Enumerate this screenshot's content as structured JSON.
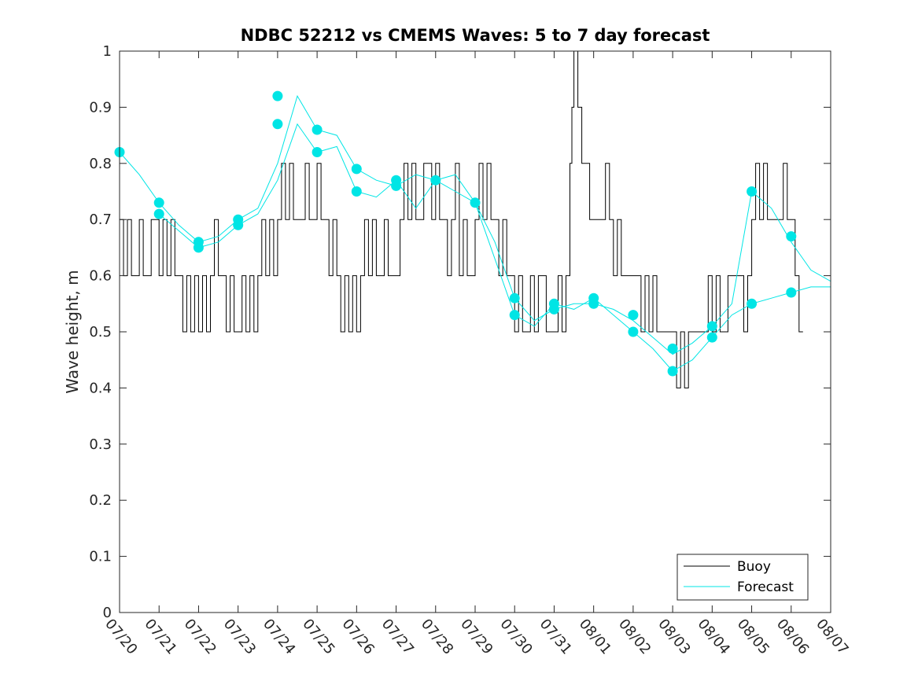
{
  "chart_data": {
    "type": "line",
    "title": "NDBC 52212 vs CMEMS Waves: 5 to 7 day forecast",
    "xlabel": "",
    "ylabel": "Wave height, m",
    "ylim": [
      0,
      1
    ],
    "yticks": [
      "0",
      "0.1",
      "0.2",
      "0.3",
      "0.4",
      "0.5",
      "0.6",
      "0.7",
      "0.8",
      "0.9",
      "1"
    ],
    "xlim_days": [
      0,
      18
    ],
    "xticks": [
      "07/20",
      "07/21",
      "07/22",
      "07/23",
      "07/24",
      "07/25",
      "07/26",
      "07/27",
      "07/28",
      "07/29",
      "07/30",
      "07/31",
      "08/01",
      "08/02",
      "08/03",
      "08/04",
      "08/05",
      "08/06",
      "08/07"
    ],
    "grid": false,
    "legend_position": "bottom-right",
    "colors": {
      "buoy": "#000000",
      "forecast": "#00e5e5"
    },
    "series": [
      {
        "name": "Buoy",
        "x": [
          0,
          0.1,
          0.2,
          0.3,
          0.4,
          0.5,
          0.6,
          0.7,
          0.8,
          0.9,
          1.0,
          1.1,
          1.2,
          1.3,
          1.4,
          1.5,
          1.6,
          1.7,
          1.8,
          1.9,
          2.0,
          2.1,
          2.2,
          2.3,
          2.4,
          2.5,
          2.6,
          2.7,
          2.8,
          2.9,
          3.0,
          3.1,
          3.2,
          3.3,
          3.4,
          3.5,
          3.6,
          3.7,
          3.8,
          3.9,
          4.0,
          4.1,
          4.2,
          4.3,
          4.4,
          4.5,
          4.6,
          4.7,
          4.8,
          4.9,
          5.0,
          5.1,
          5.2,
          5.3,
          5.4,
          5.5,
          5.6,
          5.7,
          5.8,
          5.9,
          6.0,
          6.1,
          6.2,
          6.3,
          6.4,
          6.5,
          6.6,
          6.7,
          6.8,
          6.9,
          7.0,
          7.1,
          7.2,
          7.3,
          7.4,
          7.5,
          7.6,
          7.7,
          7.8,
          7.9,
          8.0,
          8.1,
          8.2,
          8.3,
          8.4,
          8.5,
          8.6,
          8.7,
          8.8,
          8.9,
          9.0,
          9.1,
          9.2,
          9.3,
          9.4,
          9.5,
          9.6,
          9.7,
          9.8,
          9.9,
          10.0,
          10.1,
          10.2,
          10.3,
          10.4,
          10.5,
          10.6,
          10.7,
          10.8,
          10.9,
          11.0,
          11.1,
          11.2,
          11.3,
          11.4,
          11.45,
          11.5,
          11.55,
          11.6,
          11.7,
          11.8,
          11.9,
          12.0,
          12.1,
          12.2,
          12.3,
          12.4,
          12.5,
          12.6,
          12.7,
          12.8,
          12.9,
          13.0,
          13.1,
          13.2,
          13.3,
          13.4,
          13.5,
          13.6,
          13.7,
          13.8,
          13.9,
          14.0,
          14.1,
          14.2,
          14.3,
          14.4,
          14.5,
          14.6,
          14.7,
          14.8,
          14.9,
          15.0,
          15.1,
          15.2,
          15.3,
          15.4,
          15.5,
          15.6,
          15.7,
          15.8,
          15.9,
          16.0,
          16.1,
          16.2,
          16.3,
          16.4,
          16.5,
          16.6,
          16.7,
          16.8,
          16.9,
          17.0,
          17.1,
          17.2,
          17.3
        ],
        "y": [
          0.7,
          0.6,
          0.7,
          0.6,
          0.6,
          0.7,
          0.6,
          0.6,
          0.7,
          0.7,
          0.6,
          0.7,
          0.6,
          0.7,
          0.6,
          0.6,
          0.5,
          0.6,
          0.5,
          0.6,
          0.5,
          0.6,
          0.5,
          0.6,
          0.7,
          0.6,
          0.6,
          0.5,
          0.6,
          0.5,
          0.5,
          0.6,
          0.5,
          0.6,
          0.5,
          0.6,
          0.7,
          0.6,
          0.7,
          0.6,
          0.7,
          0.8,
          0.7,
          0.8,
          0.7,
          0.7,
          0.7,
          0.8,
          0.7,
          0.7,
          0.8,
          0.7,
          0.7,
          0.6,
          0.7,
          0.6,
          0.5,
          0.6,
          0.5,
          0.6,
          0.5,
          0.6,
          0.7,
          0.6,
          0.7,
          0.6,
          0.6,
          0.7,
          0.6,
          0.6,
          0.6,
          0.7,
          0.8,
          0.7,
          0.8,
          0.7,
          0.7,
          0.8,
          0.8,
          0.7,
          0.8,
          0.7,
          0.7,
          0.6,
          0.7,
          0.8,
          0.6,
          0.7,
          0.6,
          0.6,
          0.7,
          0.8,
          0.7,
          0.8,
          0.7,
          0.7,
          0.6,
          0.7,
          0.6,
          0.6,
          0.5,
          0.6,
          0.5,
          0.5,
          0.6,
          0.5,
          0.6,
          0.6,
          0.5,
          0.5,
          0.5,
          0.6,
          0.5,
          0.6,
          0.8,
          0.9,
          1.0,
          1.0,
          0.9,
          0.8,
          0.8,
          0.7,
          0.7,
          0.7,
          0.7,
          0.8,
          0.7,
          0.6,
          0.7,
          0.6,
          0.6,
          0.6,
          0.6,
          0.6,
          0.5,
          0.6,
          0.5,
          0.6,
          0.5,
          0.5,
          0.5,
          0.5,
          0.5,
          0.4,
          0.5,
          0.4,
          0.5,
          0.5,
          0.5,
          0.5,
          0.5,
          0.6,
          0.5,
          0.6,
          0.5,
          0.5,
          0.6,
          0.6,
          0.6,
          0.6,
          0.5,
          0.6,
          0.7,
          0.8,
          0.7,
          0.8,
          0.7,
          0.7,
          0.7,
          0.7,
          0.8,
          0.7,
          0.7,
          0.6,
          0.5,
          0.5
        ]
      },
      {
        "name": "Forecast",
        "x": [
          0,
          0.5,
          1.0,
          1.5,
          2.0,
          2.5,
          3.0,
          3.5,
          4.0,
          4.5,
          5.0,
          5.5,
          6.0,
          6.5,
          7.0,
          7.5,
          8.0,
          8.5,
          9.0,
          9.5,
          10.0,
          10.5,
          11.0,
          11.5,
          12.0,
          12.5,
          13.0,
          13.5,
          14.0,
          14.5,
          15.0,
          15.5,
          16.0,
          16.5,
          17.0,
          17.5,
          18.0
        ],
        "y": [
          0.82,
          0.78,
          0.73,
          0.69,
          0.66,
          0.67,
          0.7,
          0.72,
          0.8,
          0.92,
          0.86,
          0.85,
          0.79,
          0.77,
          0.76,
          0.78,
          0.77,
          0.78,
          0.73,
          0.66,
          0.56,
          0.52,
          0.54,
          0.55,
          0.55,
          0.54,
          0.52,
          0.49,
          0.46,
          0.48,
          0.51,
          0.55,
          0.75,
          0.72,
          0.66,
          0.61,
          0.59
        ]
      },
      {
        "name": "",
        "x": [
          1.0,
          1.5,
          2.0,
          2.5,
          3.0,
          3.5,
          4.0,
          4.5,
          5.0,
          5.5,
          6.0,
          6.5,
          7.0,
          7.5,
          8.0,
          8.5,
          9.0,
          9.5,
          10.0,
          10.5,
          11.0,
          11.5,
          12.0,
          12.5,
          13.0,
          13.5,
          14.0,
          14.5,
          15.0,
          15.5,
          16.0,
          16.5,
          17.0,
          17.5,
          18.0
        ],
        "y": [
          0.71,
          0.68,
          0.65,
          0.66,
          0.69,
          0.71,
          0.77,
          0.87,
          0.82,
          0.83,
          0.75,
          0.74,
          0.77,
          0.72,
          0.77,
          0.75,
          0.73,
          0.63,
          0.53,
          0.51,
          0.55,
          0.54,
          0.56,
          0.53,
          0.5,
          0.47,
          0.43,
          0.45,
          0.49,
          0.53,
          0.55,
          0.56,
          0.57,
          0.58,
          0.58
        ]
      }
    ],
    "markers": {
      "x": [
        0,
        1,
        1,
        2,
        2,
        3,
        3,
        4,
        4,
        5,
        5,
        6,
        6,
        7,
        7,
        8,
        9,
        10,
        10,
        11,
        11,
        12,
        12,
        13,
        13,
        14,
        14,
        15,
        15,
        16,
        16,
        17,
        17
      ],
      "y": [
        0.82,
        0.73,
        0.71,
        0.66,
        0.65,
        0.7,
        0.69,
        0.92,
        0.87,
        0.86,
        0.82,
        0.79,
        0.75,
        0.77,
        0.76,
        0.77,
        0.73,
        0.56,
        0.53,
        0.55,
        0.54,
        0.56,
        0.55,
        0.53,
        0.5,
        0.47,
        0.43,
        0.51,
        0.49,
        0.75,
        0.55,
        0.67,
        0.57
      ]
    },
    "legend": [
      "Buoy",
      "Forecast"
    ]
  }
}
